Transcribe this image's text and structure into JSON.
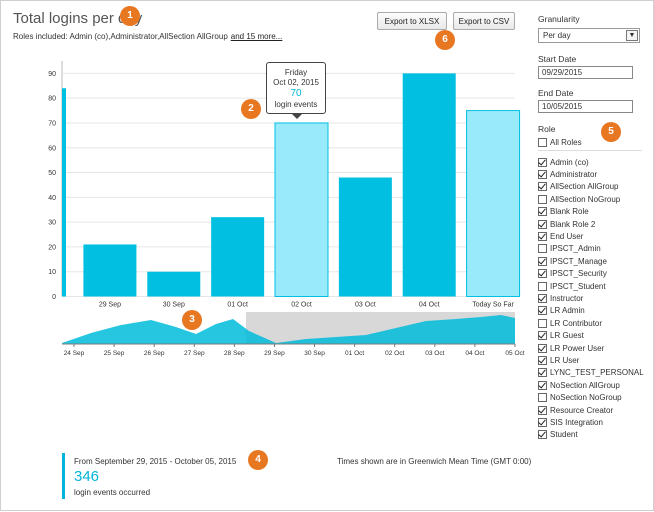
{
  "header": {
    "title": "Total logins per day",
    "roles_prefix": "Roles included: Admin (co),Administrator,AllSection AllGroup",
    "roles_more": "and 15 more..."
  },
  "toolbar": {
    "export_xlsx": "Export to XLSX",
    "export_csv": "Export to CSV"
  },
  "badges": [
    "1",
    "2",
    "3",
    "4",
    "5",
    "6"
  ],
  "tooltip": {
    "day": "Friday",
    "date": "Oct 02, 2015",
    "value": "70",
    "unit": "login events"
  },
  "navigator": {
    "ticks": [
      "24 Sep",
      "25 Sep",
      "26 Sep",
      "27 Sep",
      "28 Sep",
      "29 Sep",
      "30 Sep",
      "01 Oct",
      "02 Oct",
      "03 Oct",
      "04 Oct",
      "05 Oct"
    ]
  },
  "summary": {
    "range": "From September 29, 2015 - October 05, 2015",
    "total": "346",
    "caption": "login events occurred",
    "timezone": "Times shown are in Greenwich Mean Time (GMT 0:00)"
  },
  "sidebar": {
    "granularity_label": "Granularity",
    "granularity_value": "Per day",
    "start_label": "Start Date",
    "start_value": "09/29/2015",
    "end_label": "End Date",
    "end_value": "10/05/2015",
    "role_label": "Role",
    "all_roles": "All Roles",
    "roles": [
      {
        "name": "Admin (co)",
        "checked": true
      },
      {
        "name": "Administrator",
        "checked": true
      },
      {
        "name": "AllSection AllGroup",
        "checked": true
      },
      {
        "name": "AllSection NoGroup",
        "checked": false
      },
      {
        "name": "Blank Role",
        "checked": true
      },
      {
        "name": "Blank Role 2",
        "checked": true
      },
      {
        "name": "End User",
        "checked": true
      },
      {
        "name": "IPSCT_Admin",
        "checked": false
      },
      {
        "name": "IPSCT_Manage",
        "checked": true
      },
      {
        "name": "IPSCT_Security",
        "checked": true
      },
      {
        "name": "IPSCT_Student",
        "checked": false
      },
      {
        "name": "Instructor",
        "checked": true
      },
      {
        "name": "LR Admin",
        "checked": true
      },
      {
        "name": "LR Contributor",
        "checked": false
      },
      {
        "name": "LR Guest",
        "checked": true
      },
      {
        "name": "LR Power User",
        "checked": true
      },
      {
        "name": "LR User",
        "checked": true
      },
      {
        "name": "LYNC_TEST_PERSONAL",
        "checked": true
      },
      {
        "name": "NoSection AllGroup",
        "checked": true
      },
      {
        "name": "NoSection NoGroup",
        "checked": false
      },
      {
        "name": "Resource Creator",
        "checked": true
      },
      {
        "name": "SIS Integration",
        "checked": true
      },
      {
        "name": "Student",
        "checked": true
      }
    ]
  },
  "colors": {
    "bar": "#00bfe0",
    "bar_highlight": "#99ebfb",
    "badge": "#e87722"
  },
  "chart_data": {
    "type": "bar",
    "categories": [
      "29 Sep",
      "30 Sep",
      "01 Oct",
      "02 Oct",
      "03 Oct",
      "04 Oct",
      "Today So Far"
    ],
    "values": [
      21,
      10,
      32,
      70,
      48,
      90,
      75
    ],
    "highlighted": [
      "02 Oct",
      "Today So Far"
    ],
    "yticks": [
      0,
      10,
      20,
      30,
      40,
      50,
      60,
      70,
      80,
      90
    ],
    "ylim": [
      0,
      95
    ],
    "grid": true
  }
}
